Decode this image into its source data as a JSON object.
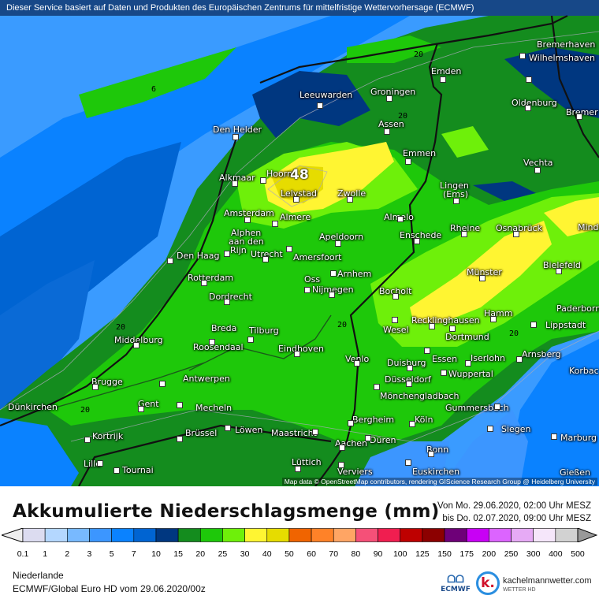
{
  "header": {
    "notice": "Dieser Service basiert auf Daten und Produkten des Europäischen Zentrums für mittelfristige Wettervorhersage (ECMWF)"
  },
  "map": {
    "max_value_label": "48",
    "contour_labels": [
      "6",
      "20",
      "20",
      "20",
      "20",
      "20",
      "20"
    ],
    "attribution": "Map data © OpenStreetMap contributors, rendering GIScience Research Group @ Heidelberg University",
    "cities": [
      "Bremerhaven",
      "Wilhelmshaven",
      "Emden",
      "Oldenburg",
      "Bremer",
      "Leeuwarden",
      "Groningen",
      "Den Helder",
      "Assen",
      "Emmen",
      "Vechta",
      "Alkmaar",
      "Hoorn",
      "Lelystad",
      "Zwolle",
      "Lingen",
      "(Ems)",
      "Amsterdam",
      "Almere",
      "Almelo",
      "Rheine",
      "Osnabrück",
      "Mind",
      "Apeldoorn",
      "Enschede",
      "Alphen",
      "aan den",
      "Rijn",
      "Utrecht",
      "Amersfoort",
      "Den Haag",
      "Bielefeld",
      "Arnhem",
      "Münster",
      "Rotterdam",
      "Nijmegen",
      "Oss",
      "Bocholt",
      "Dordrecht",
      "Paderborn",
      "Hamm",
      "Recklinghausen",
      "Lippstadt",
      "Breda",
      "Tilburg",
      "Wesel",
      "Dortmund",
      "Middelburg",
      "Roosendaal",
      "Eindhoven",
      "Arnsberg",
      "Korbac",
      "Essen",
      "Iserlohn",
      "Venlo",
      "Duisburg",
      "Wuppertal",
      "Düsseldorf",
      "Brugge",
      "Antwerpen",
      "Mönchengladbach",
      "Dünkirchen",
      "Gent",
      "Mecheln",
      "Gummersbach",
      "Bergheim",
      "Köln",
      "Kortrijk",
      "Brüssel",
      "Löwen",
      "Maastricht",
      "Siegen",
      "Marburg",
      "Düren",
      "Aachen",
      "Bonn",
      "Lille",
      "Lüttich",
      "Tournai",
      "Euskirchen",
      "Verviers",
      "Gießen"
    ]
  },
  "title": "Akkumulierte Niederschlagsmenge (mm)",
  "period": {
    "from": "Von Mo. 29.06.2020, 02:00 Uhr MESZ",
    "to": "bis Do. 02.07.2020, 09:00 Uhr MESZ"
  },
  "legend": {
    "labels": [
      "0.1",
      "1",
      "2",
      "3",
      "5",
      "7",
      "10",
      "15",
      "20",
      "25",
      "30",
      "40",
      "50",
      "60",
      "70",
      "80",
      "90",
      "100",
      "125",
      "150",
      "175",
      "200",
      "250",
      "300",
      "400",
      "500"
    ],
    "colors": [
      "#dcdcf0",
      "#b4d7ff",
      "#78b9ff",
      "#3c96ff",
      "#0a82ff",
      "#0064d2",
      "#003780",
      "#148c1e",
      "#1ec80a",
      "#6ef00a",
      "#fff532",
      "#e6dc00",
      "#f06400",
      "#ff8228",
      "#ffa564",
      "#f55078",
      "#f01e50",
      "#be0000",
      "#8c0000",
      "#6e0078",
      "#c800f5",
      "#dc64ff",
      "#e6aaf5",
      "#f5e6fa",
      "#d2d2d2"
    ],
    "under_color": "#eeeeee",
    "over_color": "#999999"
  },
  "footer": {
    "region": "Niederlande",
    "model": "ECMWF/Global Euro HD vom  29.06.2020/00z",
    "ecmwf_logo": "ECMWF",
    "brand": "kachelmannwetter.com",
    "brand_sub": "WETTER HD",
    "brand_logo": "k."
  }
}
